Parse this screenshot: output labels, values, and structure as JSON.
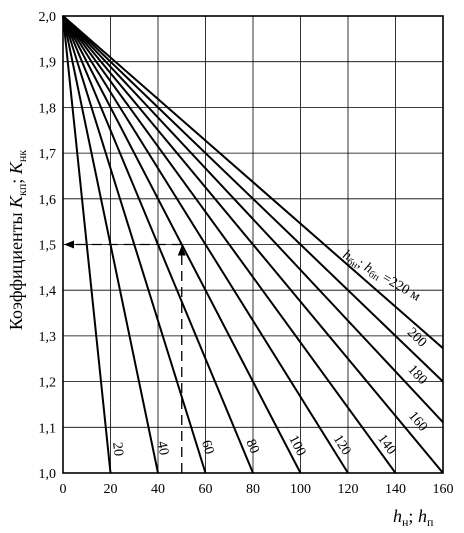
{
  "chart_data": {
    "type": "line",
    "ylabel_parts": [
      "Коэффициенты ",
      "K",
      "кп",
      "; ",
      "K",
      "нк"
    ],
    "xlabel_parts": [
      "h",
      "н",
      "; ",
      "h",
      "п"
    ],
    "xlim": [
      0,
      160
    ],
    "ylim": [
      1.0,
      2.0
    ],
    "x_ticks": [
      "0",
      "20",
      "40",
      "60",
      "80",
      "100",
      "120",
      "140",
      "160"
    ],
    "y_ticks": [
      "1,0",
      "1,1",
      "1,2",
      "1,3",
      "1,4",
      "1,5",
      "1,6",
      "1,7",
      "1,8",
      "1,9",
      "2,0"
    ],
    "grid": true,
    "series_label_parts": [
      "h",
      "бн",
      "; ",
      "h",
      "бп",
      " =220 м"
    ],
    "series": [
      {
        "label": "20",
        "x": [
          0,
          20
        ],
        "y": [
          2.0,
          1.0
        ]
      },
      {
        "label": "40",
        "x": [
          0,
          40
        ],
        "y": [
          2.0,
          1.0
        ]
      },
      {
        "label": "60",
        "x": [
          0,
          60
        ],
        "y": [
          2.0,
          1.0
        ]
      },
      {
        "label": "80",
        "x": [
          0,
          80
        ],
        "y": [
          2.0,
          1.0
        ]
      },
      {
        "label": "100",
        "x": [
          0,
          100
        ],
        "y": [
          2.0,
          1.0
        ]
      },
      {
        "label": "120",
        "x": [
          0,
          120
        ],
        "y": [
          2.0,
          1.0
        ]
      },
      {
        "label": "140",
        "x": [
          0,
          140
        ],
        "y": [
          2.0,
          1.0
        ]
      },
      {
        "label": "160",
        "x": [
          0,
          160
        ],
        "y": [
          2.0,
          1.0
        ]
      },
      {
        "label": "180",
        "x": [
          0,
          160
        ],
        "y": [
          2.0,
          1.111
        ]
      },
      {
        "label": "200",
        "x": [
          0,
          160
        ],
        "y": [
          2.0,
          1.2
        ]
      },
      {
        "label": "220",
        "x": [
          0,
          160
        ],
        "y": [
          2.0,
          1.273
        ]
      }
    ],
    "example_point": {
      "x": 50,
      "y": 1.5
    }
  }
}
